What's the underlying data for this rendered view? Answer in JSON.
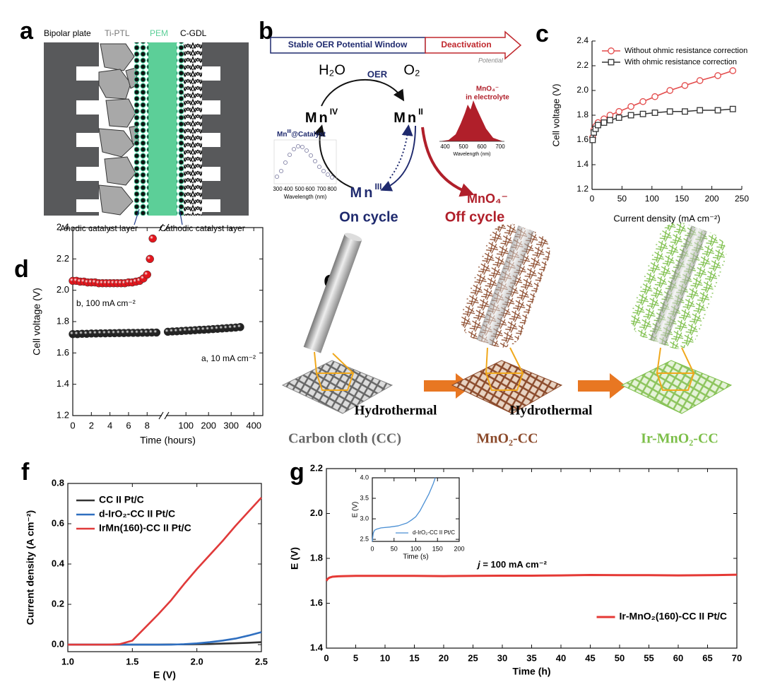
{
  "panel_labels": [
    "a",
    "b",
    "c",
    "d",
    "e",
    "f",
    "g"
  ],
  "diagram_a": {
    "bipolar_plate": "Bipolar plate",
    "ti_ptl": "Ti-PTL",
    "pem": "PEM",
    "c_gdl": "C-GDL",
    "anodic": "Anodic catalyst layer",
    "cathodic": "Cathodic catalyst layer"
  },
  "diagram_b": {
    "window": "Stable OER Potential Window",
    "deactivation": "Deactivation",
    "potential": "Potential",
    "h2o": "H₂O",
    "o2": "O₂",
    "oer": "OER",
    "mn_iv": {
      "base": "Mn",
      "sup": "IV"
    },
    "mn_ii": {
      "base": "Mn",
      "sup": "II"
    },
    "mn_iii": {
      "base": "Mn",
      "sup": "III"
    },
    "mno4": "MnO₄⁻",
    "on_cycle": "On cycle",
    "off_cycle": "Off cycle",
    "inset_left": {
      "title": {
        "base": "Mn",
        "sup": "III",
        "tail": "@Catalyst"
      },
      "xlabel": "Wavelength (nm)",
      "xticks": [
        300,
        400,
        500,
        600,
        700,
        800
      ]
    },
    "inset_right": {
      "title_1": "MnO₄⁻",
      "title_2": "in electrolyte",
      "xlabel": "Wavelength (nm)",
      "xticks": [
        400,
        500,
        600,
        700
      ]
    }
  },
  "diagram_e": {
    "steps": [
      "Hydrothermal",
      "Hydrothermal"
    ],
    "products": [
      "Carbon cloth (CC)",
      "MnO₂-CC",
      "Ir-MnO₂-CC"
    ]
  },
  "chart_data": [
    {
      "type": "line",
      "frame": "axes",
      "xlabel": "Current density (mA cm⁻²)",
      "ylabel": "Cell voltage (V)",
      "xlim": [
        0,
        250
      ],
      "ylim": [
        1.2,
        2.4
      ],
      "xticks": [
        0,
        50,
        100,
        150,
        200,
        250
      ],
      "yticks": [
        1.2,
        1.4,
        1.6,
        1.8,
        {
          "value": 2,
          "label": "2.0"
        },
        2.2,
        2.4
      ],
      "legend": "upper left",
      "x": [
        1,
        3,
        6,
        10,
        20,
        30,
        45,
        65,
        85,
        105,
        130,
        155,
        180,
        210,
        235
      ],
      "series": [
        {
          "name": "Without ohmic resistance correction",
          "color": "#e34a4a",
          "marker": "circle",
          "values": [
            1.62,
            1.68,
            1.71,
            1.74,
            1.77,
            1.8,
            1.83,
            1.87,
            1.91,
            1.95,
            2.0,
            2.04,
            2.08,
            2.12,
            2.16
          ]
        },
        {
          "name": "With ohmic resistance correction",
          "color": "#333333",
          "marker": "square",
          "values": [
            1.6,
            1.66,
            1.69,
            1.72,
            1.74,
            1.76,
            1.78,
            1.8,
            1.81,
            1.82,
            1.83,
            1.83,
            1.84,
            1.84,
            1.85
          ]
        }
      ]
    },
    {
      "type": "scatter",
      "frame": "box",
      "xlabel": "Time (hours)",
      "ylabel": "Cell voltage (V)",
      "xlim": [
        0,
        440
      ],
      "xbreak": [
        9.5,
        15
      ],
      "ylim": [
        1.2,
        2.4
      ],
      "xticks": [
        0,
        2,
        4,
        6,
        8,
        100,
        200,
        300,
        400
      ],
      "yticks": [
        1.2,
        1.4,
        1.6,
        1.8,
        {
          "value": 2,
          "label": "2.0"
        },
        2.2,
        2.4
      ],
      "legend": "inline",
      "series": [
        {
          "name": "a, 10 mA cm⁻²",
          "color": "#222222",
          "marker": "sphere",
          "x": [
            0,
            0.5,
            1,
            1.5,
            2,
            2.5,
            3,
            3.5,
            4,
            4.5,
            5,
            5.5,
            6,
            6.5,
            7,
            7.5,
            8,
            8.5,
            9,
            20,
            40,
            60,
            80,
            100,
            120,
            140,
            160,
            180,
            200,
            220,
            240,
            260,
            280,
            300,
            320,
            340
          ],
          "values": [
            1.72,
            1.72,
            1.722,
            1.722,
            1.724,
            1.724,
            1.725,
            1.725,
            1.726,
            1.726,
            1.727,
            1.727,
            1.728,
            1.728,
            1.728,
            1.729,
            1.729,
            1.73,
            1.73,
            1.735,
            1.737,
            1.738,
            1.74,
            1.742,
            1.743,
            1.745,
            1.747,
            1.748,
            1.75,
            1.752,
            1.754,
            1.756,
            1.758,
            1.76,
            1.762,
            1.765
          ]
        },
        {
          "name": "b, 100 mA cm⁻²",
          "color": "#e3161d",
          "marker": "sphere",
          "x": [
            0,
            0.4,
            0.8,
            1.2,
            1.6,
            2,
            2.4,
            2.8,
            3.2,
            3.6,
            4,
            4.4,
            4.8,
            5.2,
            5.6,
            6,
            6.4,
            6.8,
            7.2,
            7.6,
            8,
            8.3,
            8.6
          ],
          "values": [
            2.06,
            2.06,
            2.055,
            2.055,
            2.05,
            2.05,
            2.05,
            2.045,
            2.045,
            2.045,
            2.045,
            2.045,
            2.045,
            2.045,
            2.045,
            2.05,
            2.05,
            2.055,
            2.06,
            2.075,
            2.1,
            2.2,
            2.33
          ]
        }
      ]
    },
    {
      "type": "line",
      "frame": "box",
      "xlabel": "E (V)",
      "ylabel": "Current density (A cm⁻²)",
      "xlim": [
        1,
        2.5
      ],
      "ylim": [
        -0.035,
        0.8
      ],
      "xticks": [
        {
          "value": 1,
          "label": "1.0"
        },
        1.5,
        {
          "value": 2,
          "label": "2.0"
        },
        2.5
      ],
      "yticks": [
        {
          "value": 0,
          "label": "0.0"
        },
        0.2,
        0.4,
        0.6,
        0.8
      ],
      "legend": "upper left",
      "x": [
        1,
        1.1,
        1.2,
        1.3,
        1.4,
        1.5,
        1.6,
        1.7,
        1.8,
        1.9,
        2,
        2.1,
        2.2,
        2.3,
        2.4,
        2.5
      ],
      "series": [
        {
          "name": "CC II Pt/C",
          "color": "#333333",
          "values": [
            0,
            0,
            0,
            0,
            0,
            0,
            0,
            0,
            0.001,
            0.001,
            0.002,
            0.003,
            0.005,
            0.007,
            0.009,
            0.012
          ]
        },
        {
          "name": "d-IrO₂-CC II Pt/C",
          "color": "#2f6fc0",
          "values": [
            0,
            0,
            0,
            0,
            0,
            0,
            0,
            0,
            0,
            0.002,
            0.006,
            0.012,
            0.02,
            0.03,
            0.045,
            0.062
          ]
        },
        {
          "name": "IrMn(160)-CC II Pt/C",
          "color": "#e03a3a",
          "values": [
            0,
            0,
            0,
            0,
            0.002,
            0.02,
            0.085,
            0.15,
            0.22,
            0.3,
            0.375,
            0.445,
            0.515,
            0.59,
            0.66,
            0.73
          ]
        }
      ]
    },
    {
      "type": "line",
      "frame": "box",
      "xlabel": "Time (h)",
      "ylabel": "E (V)",
      "xlim": [
        0,
        70
      ],
      "ylim": [
        1.4,
        2.2
      ],
      "xticks": [
        0,
        5,
        10,
        15,
        20,
        25,
        30,
        35,
        40,
        45,
        50,
        55,
        60,
        65,
        70
      ],
      "yticks": [
        1.4,
        1.6,
        1.8,
        {
          "value": 2,
          "label": "2.0"
        },
        2.2
      ],
      "legend": "lower right",
      "annotation": {
        "symbol": "j",
        "text": " = 100 mA cm⁻²"
      },
      "x": [
        0,
        0.2,
        0.5,
        1,
        2,
        3,
        5,
        10,
        15,
        20,
        25,
        30,
        35,
        40,
        45,
        50,
        55,
        60,
        65,
        70
      ],
      "series": [
        {
          "name": "Ir-MnO₂(160)-CC II Pt/C",
          "color": "#e53935",
          "values": [
            1.7,
            1.708,
            1.714,
            1.718,
            1.72,
            1.721,
            1.722,
            1.722,
            1.722,
            1.721,
            1.722,
            1.723,
            1.723,
            1.724,
            1.726,
            1.725,
            1.725,
            1.724,
            1.725,
            1.727
          ]
        }
      ]
    },
    {
      "type": "line",
      "frame": "box",
      "xlabel": "Time (s)",
      "ylabel": "E (V)",
      "xlim": [
        0,
        200
      ],
      "ylim": [
        2.45,
        4
      ],
      "xticks": [
        0,
        50,
        100,
        150,
        200
      ],
      "yticks": [
        2.5,
        {
          "value": 3,
          "label": "3.0"
        },
        3.5,
        {
          "value": 4,
          "label": "4.0"
        }
      ],
      "legend": "lower right",
      "x": [
        0,
        2,
        5,
        10,
        20,
        40,
        60,
        80,
        90,
        100,
        110,
        120,
        130,
        140,
        145
      ],
      "series": [
        {
          "name": "d-IrO₂-CC II Pt/C",
          "color": "#4a8fd4",
          "values": [
            2.45,
            2.65,
            2.72,
            2.75,
            2.78,
            2.8,
            2.83,
            2.9,
            2.97,
            3.05,
            3.2,
            3.4,
            3.6,
            3.85,
            4
          ]
        }
      ]
    }
  ]
}
